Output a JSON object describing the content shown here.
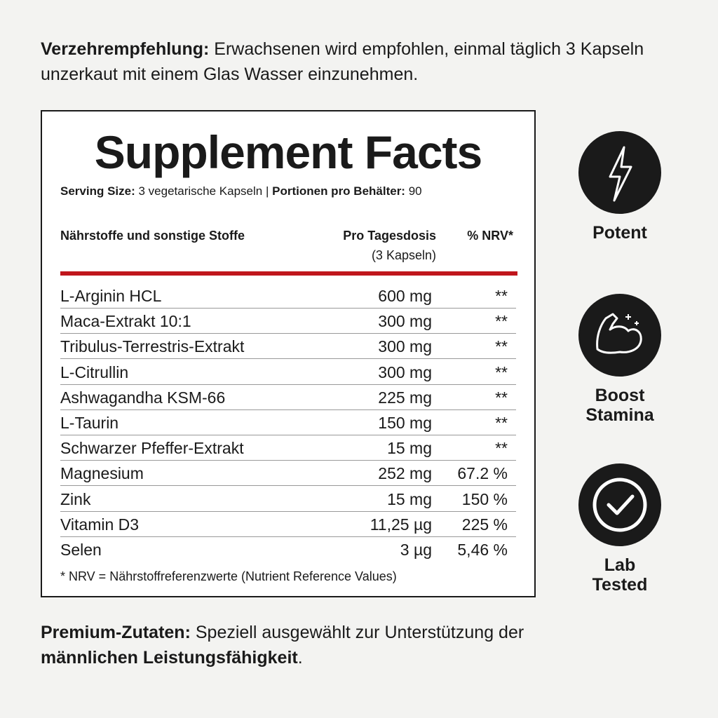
{
  "intro": {
    "label": "Verzehrempfehlung:",
    "text": "Erwachsenen wird empfohlen, einmal täglich 3 Kapseln unzerkaut mit einem Glas Wasser einzunehmen."
  },
  "facts": {
    "title": "Supplement Facts",
    "serving": {
      "size_label": "Serving Size:",
      "size": "3 vegetarische Kapseln",
      "separator": "|",
      "servings_label": "Portionen pro Behälter:",
      "servings": "90"
    },
    "header": {
      "name": "Nährstoffe und sonstige Stoffe",
      "amount": "Pro Tagesdosis",
      "amount_note": "(3 Kapseln)",
      "nrv": "% NRV*"
    },
    "rows": [
      [
        "L-Arginin HCL",
        "600 mg",
        "**"
      ],
      [
        "Maca-Extrakt 10:1",
        "300 mg",
        "**"
      ],
      [
        "Tribulus-Terrestris-Extrakt",
        "300 mg",
        "**"
      ],
      [
        "L-Citrullin",
        "300 mg",
        "**"
      ],
      [
        "Ashwagandha KSM-66",
        "225 mg",
        "**"
      ],
      [
        "L-Taurin",
        "150 mg",
        "**"
      ],
      [
        "Schwarzer Pfeffer-Extrakt",
        "15 mg",
        "**"
      ],
      [
        "Magnesium",
        "252 mg",
        "67.2 %"
      ],
      [
        "Zink",
        "15 mg",
        "150 %"
      ],
      [
        "Vitamin D3",
        "11,25 µg",
        "225 %"
      ],
      [
        "Selen",
        "3 µg",
        "5,46 %"
      ]
    ],
    "footnote": "* NRV = Nährstoffreferenzwerte (Nutrient Reference Values)"
  },
  "badges": [
    "Potent",
    "Boost Stamina",
    "Lab Tested"
  ],
  "outro": {
    "label": "Premium-Zutaten:",
    "text": "Speziell ausgewählt zur Unterstützung der",
    "highlight": "männlichen Leistungsfähigkeit",
    "end": "."
  }
}
